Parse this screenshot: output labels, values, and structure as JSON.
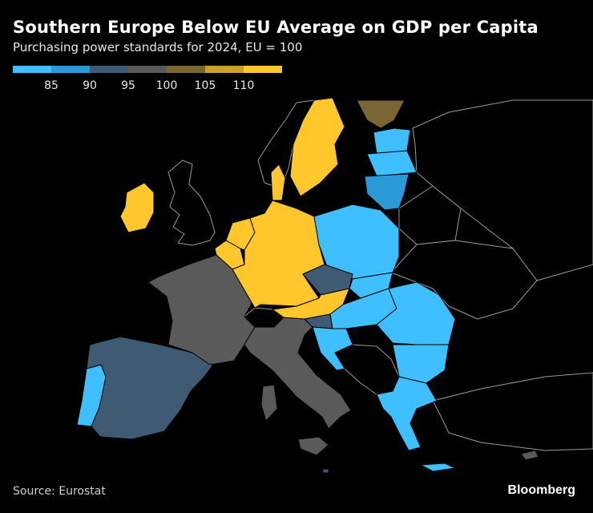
{
  "title": "Southern Europe Below EU Average on GDP per Capita",
  "subtitle": "Purchasing power standards for 2024, EU = 100",
  "legend": {
    "colors": [
      "#3fbfff",
      "#2a9ad6",
      "#3f5b74",
      "#5a5a5a",
      "#7a6634",
      "#c9a22a",
      "#ffc72c"
    ],
    "ticks": [
      "85",
      "90",
      "95",
      "100",
      "105",
      "110"
    ]
  },
  "countries": [
    {
      "name": "Portugal",
      "bin": 0
    },
    {
      "name": "Spain",
      "bin": 2
    },
    {
      "name": "France",
      "bin": 3
    },
    {
      "name": "Italy",
      "bin": 3
    },
    {
      "name": "Germany",
      "bin": 6
    },
    {
      "name": "Netherlands",
      "bin": 6
    },
    {
      "name": "Belgium",
      "bin": 6
    },
    {
      "name": "Austria",
      "bin": 6
    },
    {
      "name": "Denmark",
      "bin": 6
    },
    {
      "name": "Sweden",
      "bin": 6
    },
    {
      "name": "Ireland",
      "bin": 6
    },
    {
      "name": "Finland",
      "bin": 4
    },
    {
      "name": "Czechia",
      "bin": 2
    },
    {
      "name": "Slovenia",
      "bin": 2
    },
    {
      "name": "Lithuania",
      "bin": 1
    },
    {
      "name": "Poland",
      "bin": 0
    },
    {
      "name": "Slovakia",
      "bin": 0
    },
    {
      "name": "Hungary",
      "bin": 0
    },
    {
      "name": "Romania",
      "bin": 0
    },
    {
      "name": "Bulgaria",
      "bin": 0
    },
    {
      "name": "Croatia",
      "bin": 0
    },
    {
      "name": "Greece",
      "bin": 0
    },
    {
      "name": "Latvia",
      "bin": 0
    },
    {
      "name": "Estonia",
      "bin": 0
    },
    {
      "name": "Malta",
      "bin": 2
    },
    {
      "name": "Cyprus",
      "bin": 3
    }
  ],
  "source": "Source: Eurostat",
  "brand": "Bloomberg"
}
